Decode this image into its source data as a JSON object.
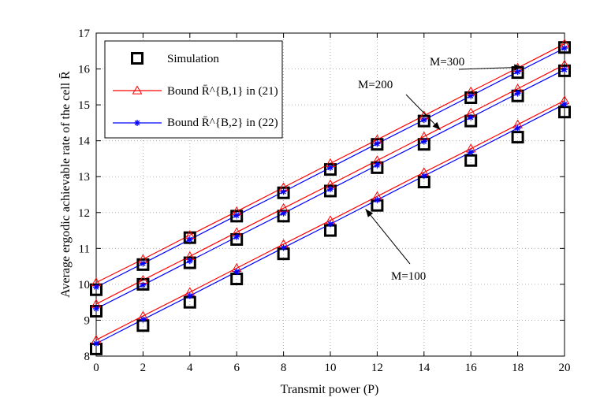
{
  "chart_data": {
    "type": "line",
    "title": "",
    "xlabel": "Transmit power (P)",
    "ylabel": "Average ergodic achievable rate of the cell R̄",
    "xlim": [
      0,
      20
    ],
    "ylim": [
      8,
      17
    ],
    "xticks": [
      0,
      2,
      4,
      6,
      8,
      10,
      12,
      14,
      16,
      18,
      20
    ],
    "yticks": [
      8,
      9,
      10,
      11,
      12,
      13,
      14,
      15,
      16,
      17
    ],
    "grid": true,
    "legend_position": "top-left",
    "legend": [
      {
        "label": "Simulation",
        "color": "#000000",
        "marker": "square"
      },
      {
        "label": "Bound R̄^{B,1} in (21)",
        "color": "#ff0000",
        "marker": "triangle"
      },
      {
        "label": "Bound R̄^{B,2} in (22)",
        "color": "#0000ff",
        "marker": "star"
      }
    ],
    "series": [
      {
        "name": "Simulation",
        "group": "M=300",
        "x": [
          0,
          2,
          4,
          6,
          8,
          10,
          12,
          14,
          16,
          18,
          20
        ],
        "y": [
          9.85,
          10.55,
          11.3,
          11.9,
          12.55,
          13.2,
          13.9,
          14.55,
          15.2,
          15.9,
          16.6
        ]
      },
      {
        "name": "Bound R̄^{B,1} in (21)",
        "group": "M=300",
        "x": [
          0,
          2,
          4,
          6,
          8,
          10,
          12,
          14,
          16,
          18,
          20
        ],
        "y": [
          10.05,
          10.7,
          11.37,
          12.03,
          12.7,
          13.37,
          14.03,
          14.7,
          15.37,
          16.03,
          16.7
        ]
      },
      {
        "name": "Bound R̄^{B,2} in (22)",
        "group": "M=300",
        "x": [
          0,
          2,
          4,
          6,
          8,
          10,
          12,
          14,
          16,
          18,
          20
        ],
        "y": [
          9.92,
          10.58,
          11.25,
          11.92,
          12.58,
          13.25,
          13.92,
          14.58,
          15.25,
          15.92,
          16.58
        ]
      },
      {
        "name": "Simulation",
        "group": "M=200",
        "x": [
          0,
          2,
          4,
          6,
          8,
          10,
          12,
          14,
          16,
          18,
          20
        ],
        "y": [
          9.25,
          10.0,
          10.6,
          11.25,
          11.9,
          12.6,
          13.25,
          13.9,
          14.55,
          15.25,
          15.95
        ]
      },
      {
        "name": "Bound R̄^{B,1} in (21)",
        "group": "M=200",
        "x": [
          0,
          2,
          4,
          6,
          8,
          10,
          12,
          14,
          16,
          18,
          20
        ],
        "y": [
          9.45,
          10.12,
          10.78,
          11.45,
          12.12,
          12.78,
          13.45,
          14.12,
          14.78,
          15.45,
          16.12
        ]
      },
      {
        "name": "Bound R̄^{B,2} in (22)",
        "group": "M=200",
        "x": [
          0,
          2,
          4,
          6,
          8,
          10,
          12,
          14,
          16,
          18,
          20
        ],
        "y": [
          9.32,
          9.98,
          10.65,
          11.32,
          11.98,
          12.65,
          13.32,
          13.98,
          14.65,
          15.32,
          15.98
        ]
      },
      {
        "name": "Simulation",
        "group": "M=100",
        "x": [
          0,
          2,
          4,
          6,
          8,
          10,
          12,
          14,
          16,
          18,
          20
        ],
        "y": [
          8.2,
          8.85,
          9.5,
          10.15,
          10.85,
          11.5,
          12.2,
          12.85,
          13.45,
          14.1,
          14.8
        ]
      },
      {
        "name": "Bound R̄^{B,1} in (21)",
        "group": "M=100",
        "x": [
          0,
          2,
          4,
          6,
          8,
          10,
          12,
          14,
          16,
          18,
          20
        ],
        "y": [
          8.45,
          9.12,
          9.78,
          10.45,
          11.12,
          11.78,
          12.45,
          13.12,
          13.78,
          14.45,
          15.12
        ]
      },
      {
        "name": "Bound R̄^{B,2} in (22)",
        "group": "M=100",
        "x": [
          0,
          2,
          4,
          6,
          8,
          10,
          12,
          14,
          16,
          18,
          20
        ],
        "y": [
          8.35,
          9.02,
          9.68,
          10.35,
          11.02,
          11.68,
          12.35,
          13.02,
          13.68,
          14.35,
          15.02
        ]
      }
    ],
    "annotations": [
      {
        "text": "M=300",
        "points_to": [
          18.2,
          16.05
        ]
      },
      {
        "text": "M=200",
        "points_to": [
          14.7,
          14.3
        ]
      },
      {
        "text": "M=100",
        "points_to": [
          11.5,
          12.1
        ]
      }
    ]
  },
  "colors": {
    "simulation": "#000000",
    "bound1": "#ff0000",
    "bound2": "#0000ff"
  }
}
